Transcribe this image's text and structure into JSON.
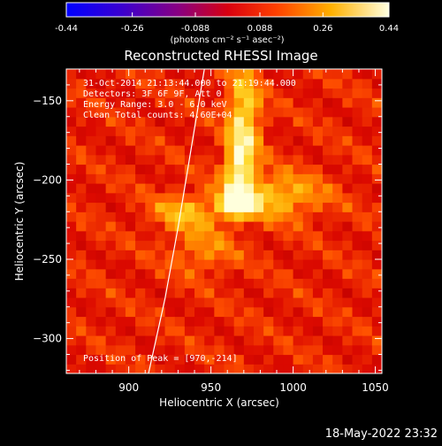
{
  "colorbar": {
    "ticks": [
      -0.44,
      -0.26,
      -0.088,
      0.088,
      0.26,
      0.44
    ],
    "tick_labels": [
      "-0.44",
      "-0.26",
      "-0.088",
      "0.088",
      "0.26",
      "0.44"
    ],
    "unit_label": "(photons cm⁻² s⁻¹ asec⁻²)",
    "colors": [
      "#0000ff",
      "#4400cc",
      "#880088",
      "#ff0000",
      "#ff6600",
      "#ffcc00",
      "#ffffcc"
    ]
  },
  "info_lines": [
    "31-Oct-2014 21:13:44.000 to 21:19:44.000",
    "Detectors: 3F 6F 9F, Att 0",
    "Energy Range: 3.0 - 6.0 keV",
    "Clean    Total counts: 4.60E+04"
  ],
  "peak_label": "Position of Peak = [970,-214]",
  "footer_date": "18-May-2022 23:32",
  "chart_data": {
    "type": "heatmap",
    "title": "Reconstructed RHESSI Image",
    "xlabel": "Heliocentric X (arcsec)",
    "ylabel": "Heliocentric Y (arcsec)",
    "xlim": [
      862,
      1054
    ],
    "ylim": [
      -322,
      -130
    ],
    "xticks": [
      900,
      950,
      1000,
      1050
    ],
    "yticks": [
      -150,
      -200,
      -250,
      -300
    ],
    "xtick_labels": [
      "900",
      "950",
      "1000",
      "1050"
    ],
    "ytick_labels": [
      "−150",
      "−200",
      "−250",
      "−300"
    ],
    "peak": [
      970,
      -214
    ],
    "sources": [
      {
        "x": 966,
        "y": -214,
        "sx": 7,
        "sy": 6,
        "amp": 0.44
      },
      {
        "x": 970,
        "y": -160,
        "sx": 7,
        "sy": 22,
        "amp": 0.26
      },
      {
        "x": 967,
        "y": -192,
        "sx": 6,
        "sy": 12,
        "amp": 0.25
      },
      {
        "x": 990,
        "y": -210,
        "sx": 20,
        "sy": 10,
        "amp": 0.2
      },
      {
        "x": 935,
        "y": -220,
        "sx": 14,
        "sy": 8,
        "amp": 0.18
      },
      {
        "x": 945,
        "y": -245,
        "sx": 14,
        "sy": 10,
        "amp": 0.12
      }
    ],
    "limb_curve": [
      [
        946,
        -130
      ],
      [
        938,
        -180
      ],
      [
        930,
        -230
      ],
      [
        922,
        -275
      ],
      [
        912,
        -322
      ]
    ]
  }
}
